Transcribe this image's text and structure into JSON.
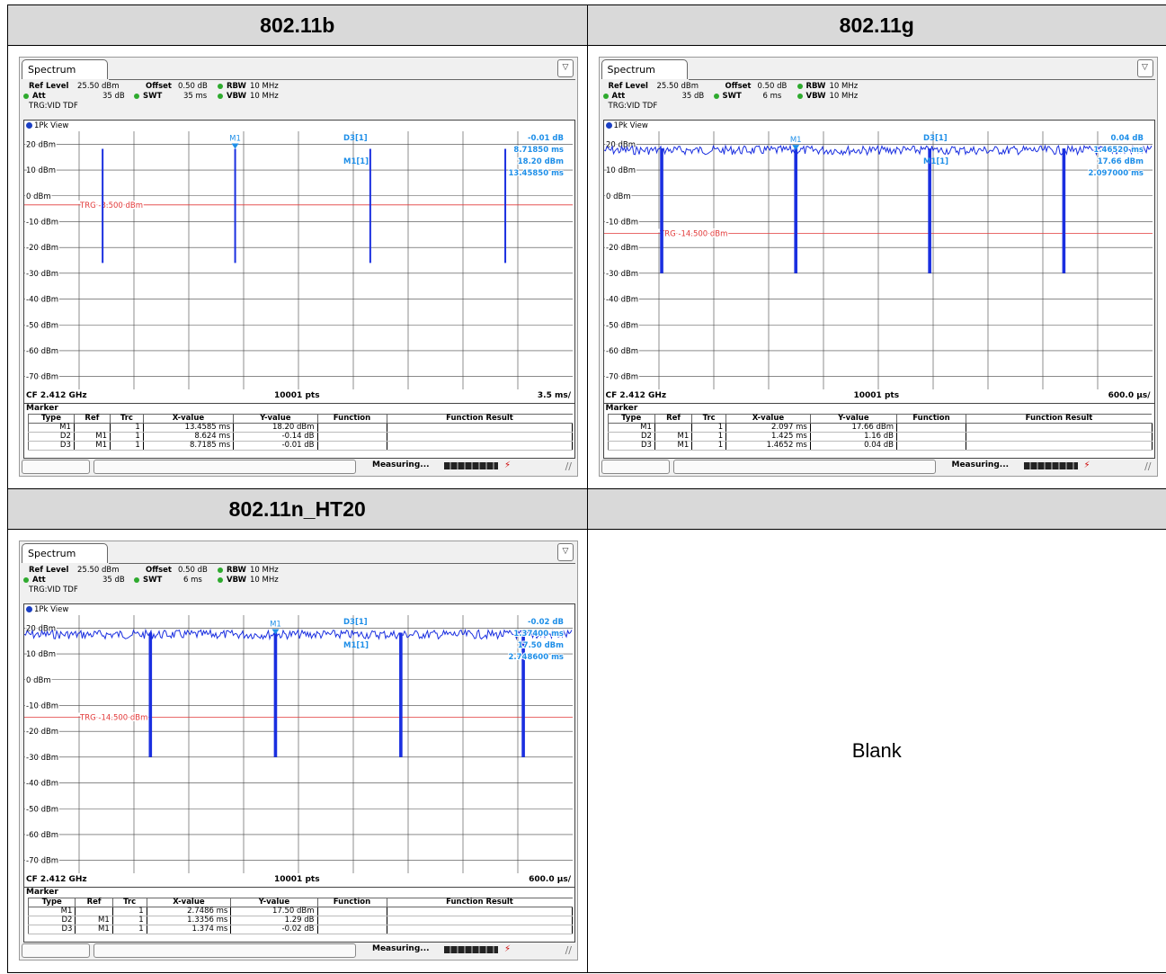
{
  "headers": [
    "802.11b",
    "802.11g",
    "802.11n_HT20",
    ""
  ],
  "blank_label": "Blank",
  "common": {
    "tab_label": "Spectrum",
    "ref_level_label": "Ref Level",
    "ref_level": "25.50 dBm",
    "offset_label": "Offset",
    "offset": "0.50 dB",
    "rbw_label": "RBW",
    "rbw": "10 MHz",
    "att_label": "Att",
    "att": "35 dB",
    "swt_label": "SWT",
    "vbw_label": "VBW",
    "vbw": "10 MHz",
    "trg": "TRG:VID TDF",
    "view_label": "1Pk View",
    "marker_label": "Marker",
    "status": "Measuring...",
    "remote": "⚡",
    "cols": [
      "Type",
      "Ref",
      "Trc",
      "X-value",
      "Y-value",
      "Function",
      "Function Result"
    ],
    "y_ticks": [
      "20 dBm",
      "10 dBm",
      "0 dBm",
      "-10 dBm",
      "-20 dBm",
      "-30 dBm",
      "-40 dBm",
      "-50 dBm",
      "-60 dBm",
      "-70 dBm"
    ],
    "cf": "CF 2.412 GHz",
    "pts": "10001 pts"
  },
  "panels": [
    {
      "swt": "35 ms",
      "trg_line": "TRG -3.500 dBm",
      "span_div": "3.5 ms/",
      "d3_label": "D3[1]",
      "d3_values": [
        "-0.01 dB",
        "8.71850 ms"
      ],
      "m1_label": "M1[1]",
      "m1_values": [
        "18.20 dBm",
        "13.45850 ms"
      ],
      "markers": [
        [
          "M1",
          "",
          "1",
          "13.4585 ms",
          "18.20 dBm"
        ],
        [
          "D2",
          "M1",
          "1",
          "8.624 ms",
          "-0.14 dB"
        ],
        [
          "D3",
          "M1",
          "1",
          "8.7185 ms",
          "-0.01 dB"
        ]
      ]
    },
    {
      "swt": "6 ms",
      "trg_line": "TRG -14.500 dBm",
      "span_div": "600.0 µs/",
      "d3_label": "D3[1]",
      "d3_values": [
        "0.04 dB",
        "1.46520 ms"
      ],
      "m1_label": "M1[1]",
      "m1_values": [
        "17.66 dBm",
        "2.097000 ms"
      ],
      "markers": [
        [
          "M1",
          "",
          "1",
          "2.097 ms",
          "17.66 dBm"
        ],
        [
          "D2",
          "M1",
          "1",
          "1.425 ms",
          "1.16 dB"
        ],
        [
          "D3",
          "M1",
          "1",
          "1.4652 ms",
          "0.04 dB"
        ]
      ]
    },
    {
      "swt": "6 ms",
      "trg_line": "TRG -14.500 dBm",
      "span_div": "600.0 µs/",
      "d3_label": "D3[1]",
      "d3_values": [
        "-0.02 dB",
        "1.37400 ms"
      ],
      "m1_label": "M1[1]",
      "m1_values": [
        "17.50 dBm",
        "2.748600 ms"
      ],
      "markers": [
        [
          "M1",
          "",
          "1",
          "2.7486 ms",
          "17.50 dBm"
        ],
        [
          "D2",
          "M1",
          "1",
          "1.3356 ms",
          "1.29 dB"
        ],
        [
          "D3",
          "M1",
          "1",
          "1.374 ms",
          "-0.02 dB"
        ]
      ]
    }
  ],
  "chart_data": [
    {
      "type": "line",
      "title": "802.11b",
      "y_unit": "dBm",
      "ylim": [
        -75,
        25
      ],
      "x_range_ms": [
        0,
        35
      ],
      "trigger_level_dbm": -3.5,
      "pulse_top_dbm": 18.2,
      "pulse_bottom_dbm": -26,
      "baseline": "off",
      "dip_times_ms": [
        5.0,
        13.4585,
        22.0825,
        30.7
      ],
      "marker_m1": {
        "x_ms": 13.4585,
        "y_dbm": 18.2
      }
    },
    {
      "type": "line",
      "title": "802.11g",
      "y_unit": "dBm",
      "ylim": [
        -75,
        25
      ],
      "x_range_ms": [
        0,
        6
      ],
      "trigger_level_dbm": -14.5,
      "signal_level_dbm": 17.66,
      "dip_bottom_dbm": -30,
      "baseline": "on",
      "dip_times_ms": [
        0.63,
        2.097,
        3.562,
        5.03
      ],
      "marker_m1": {
        "x_ms": 2.097,
        "y_dbm": 17.66
      }
    },
    {
      "type": "line",
      "title": "802.11n_HT20",
      "y_unit": "dBm",
      "ylim": [
        -75,
        25
      ],
      "x_range_ms": [
        0,
        6
      ],
      "trigger_level_dbm": -14.5,
      "signal_level_dbm": 17.5,
      "dip_bottom_dbm": -30,
      "baseline": "on",
      "dip_times_ms": [
        1.38,
        2.7486,
        4.12,
        5.46
      ],
      "marker_m1": {
        "x_ms": 2.7486,
        "y_dbm": 17.5
      }
    }
  ]
}
